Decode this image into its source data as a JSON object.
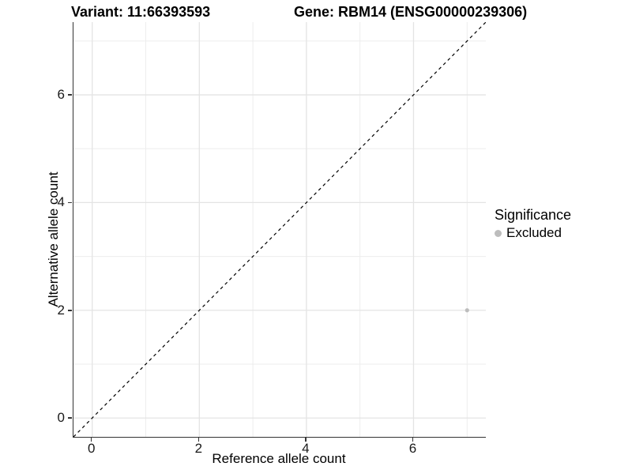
{
  "titles": {
    "variant": "Variant: 11:66393593",
    "gene": "Gene: RBM14 (ENSG00000239306)"
  },
  "chart_data": {
    "type": "scatter",
    "xlabel": "Reference allele count",
    "ylabel": "Alternative allele count",
    "xlim": [
      -0.35,
      7.35
    ],
    "ylim": [
      -0.35,
      7.35
    ],
    "x_major_ticks": [
      0,
      2,
      4,
      6
    ],
    "y_major_ticks": [
      0,
      2,
      4,
      6
    ],
    "x_minor_gridlines": [
      1,
      3,
      5,
      7
    ],
    "y_minor_gridlines": [
      1,
      3,
      5,
      7
    ],
    "grid": true,
    "series": [
      {
        "name": "Excluded",
        "color": "#bdbdbd",
        "point_radius": 2.6,
        "points": [
          {
            "x": 7,
            "y": 2
          }
        ]
      }
    ],
    "reference_line": {
      "type": "identity",
      "label": "y = x",
      "style": "dashed",
      "color": "#000000"
    },
    "legend": {
      "title": "Significance",
      "position": "right",
      "items": [
        {
          "label": "Excluded",
          "color": "#bdbdbd"
        }
      ]
    }
  },
  "colors": {
    "grid_major": "#e4e4e4",
    "grid_minor": "#ededed",
    "axis_line": "#333333",
    "text": "#1a1a1a",
    "background": "#ffffff"
  }
}
